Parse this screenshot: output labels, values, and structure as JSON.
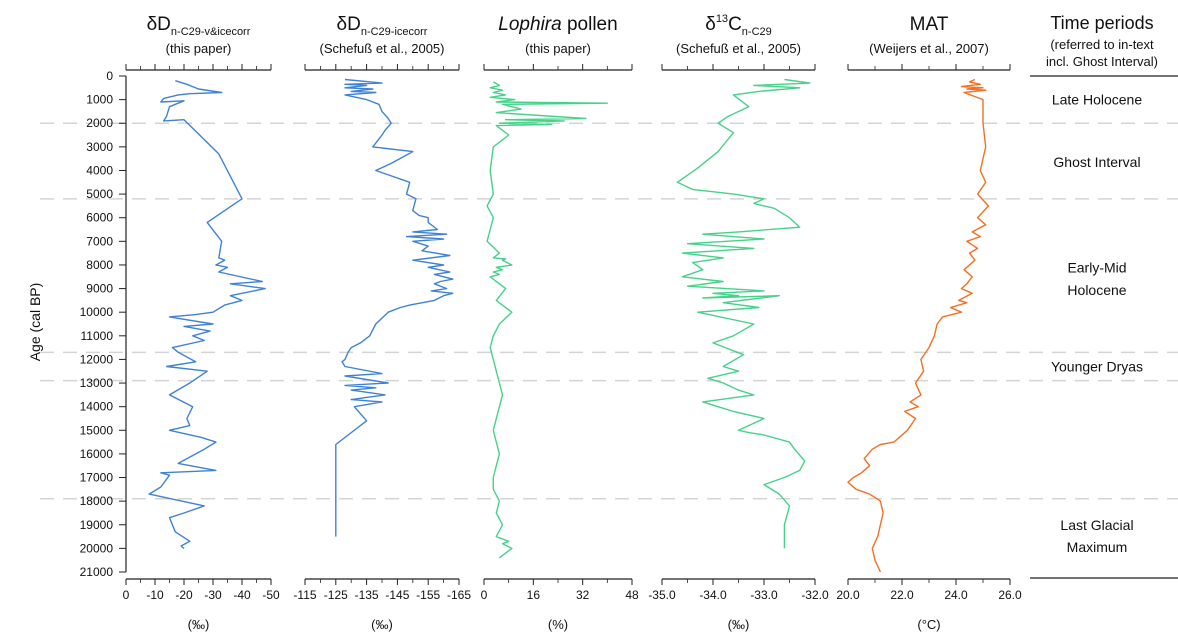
{
  "y_axis": {
    "label": "Age (cal BP)",
    "ticks": [
      0,
      1000,
      2000,
      3000,
      4000,
      5000,
      6000,
      7000,
      8000,
      9000,
      10000,
      11000,
      12000,
      13000,
      14000,
      15000,
      16000,
      17000,
      18000,
      19000,
      20000,
      21000
    ]
  },
  "chart_data": [
    {
      "type": "line",
      "title": "δD",
      "title_sub": "n-C29-v&icecorr",
      "subtitle": "(this paper)",
      "unit": "(‰)",
      "color": "#3f82d4",
      "xlim": [
        0,
        -50
      ],
      "ticks": [
        0,
        -10,
        -20,
        -30,
        -40,
        -50
      ],
      "tick_labels": [
        "0",
        "-10",
        "-20",
        "-30",
        "-40",
        "-50"
      ],
      "x": [
        -17,
        -21,
        -25,
        -33,
        -22,
        -18,
        -13,
        -12,
        -20,
        -15,
        -14,
        -13,
        -20,
        -32,
        -40,
        -28,
        -33,
        -32,
        -34,
        -31,
        -35,
        -32,
        -47,
        -36,
        -48,
        -36,
        -40,
        -34,
        -30,
        -24,
        -15,
        -30,
        -20,
        -29,
        -23,
        -27,
        -16,
        -18,
        -24,
        -14,
        -28,
        -22,
        -15,
        -23,
        -21,
        -22,
        -15,
        -26,
        -31,
        -27,
        -18,
        -31,
        -12,
        -15,
        -12,
        -8,
        -27,
        -20,
        -15,
        -17,
        -22,
        -19,
        -20
      ],
      "y": [
        200,
        350,
        550,
        700,
        750,
        800,
        950,
        1100,
        1050,
        1300,
        1700,
        1900,
        1850,
        3300,
        5200,
        6200,
        7000,
        7700,
        7800,
        8000,
        8100,
        8300,
        8700,
        8800,
        9000,
        9300,
        9500,
        9700,
        10000,
        10100,
        10200,
        10500,
        10600,
        10800,
        11000,
        11200,
        11500,
        11700,
        12100,
        12300,
        12500,
        13000,
        13500,
        14000,
        14500,
        14800,
        15000,
        15300,
        15500,
        15800,
        16400,
        16700,
        16800,
        16900,
        17400,
        17700,
        18200,
        18500,
        18700,
        19300,
        19700,
        19900,
        20000
      ]
    },
    {
      "type": "line",
      "title": "δD",
      "title_sub": "n-C29-icecorr",
      "subtitle": "(Schefuß et al., 2005)",
      "unit": "(‰)",
      "color": "#3f82d4",
      "xlim": [
        -115,
        -165
      ],
      "ticks": [
        -115,
        -125,
        -135,
        -145,
        -155,
        -165
      ],
      "tick_labels": [
        "-115",
        "-125",
        "-135",
        "-145",
        "-155",
        "-165"
      ],
      "x": [
        -128,
        -140,
        -128,
        -135,
        -128,
        -137,
        -130,
        -138,
        -128,
        -135,
        -139,
        -140,
        -142,
        -143,
        -141,
        -140,
        -137,
        -150,
        -143,
        -138,
        -149,
        -148,
        -151,
        -150,
        -152,
        -155,
        -155,
        -158,
        -150,
        -161,
        -148,
        -160,
        -150,
        -155,
        -153,
        -162,
        -150,
        -160,
        -155,
        -162,
        -157,
        -163,
        -159,
        -157,
        -161,
        -156,
        -163,
        -160,
        -157,
        -149,
        -146,
        -142,
        -138,
        -136,
        -133,
        -130,
        -129,
        -128,
        -127,
        -128,
        -140,
        -128,
        -142,
        -128,
        -138,
        -130,
        -141,
        -130,
        -140,
        -131,
        -135,
        -125,
        -125,
        -125
      ],
      "y": [
        150,
        300,
        350,
        400,
        500,
        550,
        650,
        700,
        800,
        1000,
        1200,
        1500,
        1800,
        2000,
        2300,
        2500,
        3000,
        3200,
        3700,
        4000,
        4500,
        5000,
        5200,
        5700,
        5900,
        6000,
        6200,
        6500,
        6600,
        6700,
        6800,
        6900,
        7000,
        7200,
        7400,
        7600,
        7800,
        8000,
        8100,
        8300,
        8400,
        8600,
        8700,
        8800,
        9000,
        9100,
        9200,
        9300,
        9500,
        9700,
        9800,
        10000,
        10500,
        11000,
        11300,
        11500,
        11700,
        12000,
        12100,
        12300,
        12600,
        12700,
        13000,
        13100,
        13200,
        13300,
        13500,
        13700,
        13800,
        14000,
        14600,
        15600,
        17700,
        19500
      ]
    },
    {
      "type": "line",
      "title": "Lophira",
      "title_rest": " pollen",
      "subtitle": "(this paper)",
      "unit": "(%)",
      "color": "#46d28a",
      "xlim": [
        0,
        48
      ],
      "ticks": [
        0,
        16,
        32,
        48
      ],
      "tick_labels": [
        "0",
        "16",
        "32",
        "48"
      ],
      "x": [
        3,
        5,
        2,
        6,
        3,
        7,
        2,
        10,
        4,
        40,
        6,
        12,
        4,
        33,
        7,
        26,
        5,
        22,
        4,
        8,
        3,
        2,
        3,
        1,
        3,
        2,
        1,
        5,
        3,
        7,
        6,
        9,
        4,
        6,
        3,
        5,
        2,
        7,
        4,
        9,
        5,
        3,
        2,
        3,
        4,
        5,
        6,
        5,
        4,
        3,
        4,
        5,
        4,
        3,
        3,
        5,
        4,
        6,
        4,
        8,
        6,
        9,
        7,
        5
      ],
      "y": [
        250,
        400,
        500,
        600,
        700,
        800,
        900,
        1000,
        1100,
        1150,
        1200,
        1400,
        1550,
        1800,
        1850,
        1900,
        2000,
        2050,
        2100,
        2500,
        3000,
        4000,
        5000,
        5500,
        6000,
        6500,
        7000,
        7500,
        7700,
        7750,
        7800,
        8000,
        8100,
        8200,
        8300,
        8400,
        8500,
        9000,
        9500,
        10000,
        10500,
        11000,
        11500,
        12000,
        12500,
        13000,
        13500,
        14000,
        14500,
        15000,
        15500,
        16000,
        16500,
        17000,
        17500,
        18000,
        18500,
        19000,
        19500,
        19700,
        19800,
        20000,
        20200,
        20400
      ]
    },
    {
      "type": "line",
      "title": "δ",
      "title_sup": "13",
      "title_rest": "C",
      "title_sub": "n-C29",
      "subtitle": "(Schefuß et al., 2005)",
      "unit": "(‰)",
      "color": "#46d28a",
      "xlim": [
        -35.0,
        -32.0
      ],
      "ticks": [
        -35.0,
        -34.0,
        -33.0,
        -32.0
      ],
      "tick_labels": [
        "-35.0",
        "-34.0",
        "-33.0",
        "-32.0"
      ],
      "x": [
        -32.6,
        -32.1,
        -33.2,
        -32.3,
        -33.1,
        -33.6,
        -33.3,
        -33.7,
        -33.9,
        -33.6,
        -33.9,
        -34.3,
        -34.7,
        -34.4,
        -33.6,
        -33.0,
        -33.2,
        -32.8,
        -32.5,
        -32.3,
        -33.5,
        -34.2,
        -33.0,
        -34.5,
        -33.2,
        -34.6,
        -33.8,
        -34.4,
        -34.2,
        -34.6,
        -33.8,
        -34.5,
        -33.0,
        -34.0,
        -33.5,
        -34.2,
        -32.7,
        -33.8,
        -33.1,
        -34.3,
        -33.2,
        -33.6,
        -34.0,
        -33.4,
        -33.8,
        -33.5,
        -34.1,
        -33.8,
        -33.5,
        -33.2,
        -34.2,
        -33.6,
        -33.0,
        -33.5,
        -33.3,
        -33.0,
        -32.5,
        -32.4,
        -32.2,
        -32.3,
        -32.6,
        -33.0,
        -32.7,
        -32.5,
        -32.6,
        -32.6
      ],
      "y": [
        150,
        300,
        400,
        500,
        650,
        800,
        1300,
        1700,
        2000,
        2400,
        3200,
        3900,
        4500,
        4800,
        5000,
        5200,
        5400,
        5600,
        6000,
        6400,
        6600,
        6700,
        6900,
        7100,
        7300,
        7500,
        7700,
        7900,
        8200,
        8500,
        8700,
        8900,
        9100,
        9200,
        9300,
        9400,
        9300,
        9600,
        9800,
        10000,
        10500,
        11000,
        11300,
        11800,
        12300,
        12500,
        12800,
        13000,
        13300,
        13500,
        13800,
        14200,
        14500,
        15000,
        15100,
        15200,
        15500,
        15800,
        16300,
        16700,
        17000,
        17300,
        17700,
        18200,
        19000,
        20000
      ]
    },
    {
      "type": "line",
      "title": "MAT",
      "subtitle": "(Weijers et al., 2007)",
      "unit": "(°C)",
      "color": "#f37022",
      "xlim": [
        20.0,
        26.0
      ],
      "ticks": [
        20.0,
        22.0,
        24.0,
        26.0
      ],
      "tick_labels": [
        "20.0",
        "22.0",
        "24.0",
        "26.0"
      ],
      "x": [
        24.7,
        24.5,
        24.9,
        24.2,
        25.0,
        24.4,
        25.1,
        24.3,
        25.0,
        25.0,
        25.1,
        24.9,
        25.1,
        24.8,
        25.2,
        24.8,
        25.1,
        24.6,
        24.9,
        24.4,
        24.8,
        24.5,
        24.7,
        24.3,
        24.6,
        24.4,
        24.2,
        24.6,
        24.1,
        24.4,
        23.8,
        24.2,
        23.5,
        23.3,
        23.2,
        23.0,
        22.7,
        22.8,
        22.5,
        22.7,
        22.3,
        22.6,
        22.1,
        22.5,
        22.2,
        21.7,
        21.2,
        20.9,
        20.6,
        20.8,
        20.5,
        20.2,
        20.0,
        20.3,
        20.8,
        21.2,
        21.3,
        21.2,
        21.1,
        20.9,
        21.0,
        21.2
      ],
      "y": [
        150,
        250,
        350,
        450,
        500,
        550,
        600,
        700,
        1000,
        2000,
        3000,
        4000,
        4500,
        5000,
        5500,
        6000,
        6300,
        6600,
        6800,
        7000,
        7300,
        7500,
        7800,
        8200,
        8500,
        8800,
        9000,
        9200,
        9500,
        9600,
        9800,
        10000,
        10200,
        10500,
        11000,
        11500,
        12000,
        12500,
        13000,
        13500,
        13800,
        14000,
        14200,
        14500,
        15000,
        15500,
        15600,
        15800,
        16200,
        16500,
        16800,
        17000,
        17200,
        17500,
        17700,
        18000,
        18500,
        19000,
        19500,
        20000,
        20500,
        21000
      ]
    }
  ],
  "time_periods": {
    "title": "Time periods",
    "note_line1": "(referred to in-text",
    "note_line2": "incl. Ghost Interval)",
    "boundaries": [
      2000,
      5200,
      11700,
      12900,
      17900
    ],
    "labels": [
      {
        "text": "Late Holocene",
        "age": 1000
      },
      {
        "text": "Ghost Interval",
        "age": 3650
      },
      {
        "text": "Early-Mid",
        "age": 8100
      },
      {
        "text": "Holocene",
        "age": 9050
      },
      {
        "text": "Younger Dryas",
        "age": 12300
      },
      {
        "text": "Last Glacial",
        "age": 19000
      },
      {
        "text": "Maximum",
        "age": 19950
      }
    ]
  }
}
